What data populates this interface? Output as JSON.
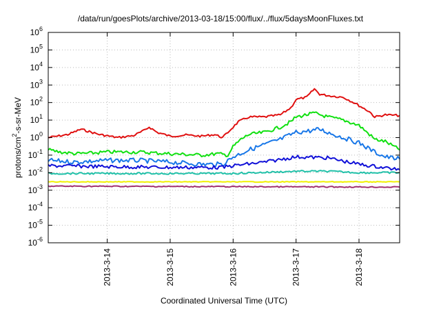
{
  "chart_data": {
    "type": "line",
    "title": "/data/run/goesPlots/archive/2013-03-18/15:00/flux/../flux/5daysMoonFluxes.txt",
    "xlabel": "Coordinated Universal Time (UTC)",
    "ylabel": "protons/cm2-s-sr-MeV",
    "ylabel_parts": {
      "base": "protons/cm",
      "sup": "2",
      "rest": "-s-sr-MeV"
    },
    "x_scale": "time",
    "xlim": [
      "2013-03-13T01:30",
      "2013-03-18T15:30"
    ],
    "x_ticks": [
      "2013-3-14",
      "2013-3-15",
      "2013-3-16",
      "2013-3-17",
      "2013-3-18"
    ],
    "x_tick_values": [
      "2013-03-14T00:00",
      "2013-03-15T00:00",
      "2013-03-16T00:00",
      "2013-03-17T00:00",
      "2013-03-18T00:00"
    ],
    "y_scale": "log",
    "ylim": [
      1e-06,
      1000000.0
    ],
    "y_tick_labels": [
      {
        "base": "10",
        "exp": "-6"
      },
      {
        "base": "10",
        "exp": "-5"
      },
      {
        "base": "10",
        "exp": "-4"
      },
      {
        "base": "10",
        "exp": "-3"
      },
      {
        "base": "10",
        "exp": "-2"
      },
      {
        "base": "10",
        "exp": "-1"
      },
      {
        "base": "10",
        "exp": "0"
      },
      {
        "base": "10",
        "exp": "1"
      },
      {
        "base": "10",
        "exp": "2"
      },
      {
        "base": "10",
        "exp": "3"
      },
      {
        "base": "10",
        "exp": "4"
      },
      {
        "base": "10",
        "exp": "5"
      },
      {
        "base": "10",
        "exp": "6"
      }
    ],
    "grid": true,
    "series": [
      {
        "color": "#e01010",
        "noise": 0.06,
        "x": [
          "2013-03-13T01:30",
          "2013-03-13T09:00",
          "2013-03-13T14:00",
          "2013-03-13T21:00",
          "2013-03-14T04:00",
          "2013-03-14T10:00",
          "2013-03-14T14:00",
          "2013-03-14T16:00",
          "2013-03-14T19:00",
          "2013-03-15T00:00",
          "2013-03-15T06:00",
          "2013-03-15T12:00",
          "2013-03-15T17:00",
          "2013-03-15T20:00",
          "2013-03-16T00:00",
          "2013-03-16T02:00",
          "2013-03-16T06:00",
          "2013-03-16T12:00",
          "2013-03-16T18:00",
          "2013-03-16T22:00",
          "2013-03-17T00:00",
          "2013-03-17T04:00",
          "2013-03-17T07:00",
          "2013-03-17T09:00",
          "2013-03-17T12:00",
          "2013-03-17T18:00",
          "2013-03-17T22:00",
          "2013-03-18T04:00",
          "2013-03-18T06:00",
          "2013-03-18T10:00",
          "2013-03-18T15:30"
        ],
        "y": [
          1.0,
          1.5,
          3.0,
          1.5,
          1.0,
          1.3,
          2.5,
          4.0,
          2.0,
          1.2,
          1.4,
          1.2,
          1.5,
          1.0,
          4.0,
          8.0,
          15,
          15,
          20,
          50,
          150,
          200,
          600,
          300,
          250,
          200,
          100,
          30,
          15,
          20,
          18
        ]
      },
      {
        "color": "#10e010",
        "noise": 0.1,
        "x": [
          "2013-03-13T01:30",
          "2013-03-13T06:00",
          "2013-03-13T12:00",
          "2013-03-13T18:00",
          "2013-03-14T00:00",
          "2013-03-14T12:00",
          "2013-03-15T00:00",
          "2013-03-15T12:00",
          "2013-03-15T18:00",
          "2013-03-15T22:00",
          "2013-03-16T00:00",
          "2013-03-16T03:00",
          "2013-03-16T06:00",
          "2013-03-16T12:00",
          "2013-03-16T18:00",
          "2013-03-16T22:00",
          "2013-03-17T00:00",
          "2013-03-17T04:00",
          "2013-03-17T07:00",
          "2013-03-17T12:00",
          "2013-03-17T18:00",
          "2013-03-18T00:00",
          "2013-03-18T04:00",
          "2013-03-18T06:00",
          "2013-03-18T10:00",
          "2013-03-18T15:30"
        ],
        "y": [
          0.2,
          0.15,
          0.12,
          0.13,
          0.15,
          0.15,
          0.12,
          0.1,
          0.12,
          0.1,
          0.3,
          0.8,
          1.5,
          2.0,
          4.0,
          8.0,
          15,
          20,
          25,
          15,
          10,
          5.0,
          1.5,
          0.8,
          0.6,
          0.2
        ]
      },
      {
        "color": "#1877e8",
        "noise": 0.13,
        "x": [
          "2013-03-13T01:30",
          "2013-03-13T12:00",
          "2013-03-14T00:00",
          "2013-03-14T12:00",
          "2013-03-15T00:00",
          "2013-03-15T12:00",
          "2013-03-15T20:00",
          "2013-03-16T00:00",
          "2013-03-16T06:00",
          "2013-03-16T12:00",
          "2013-03-16T18:00",
          "2013-03-17T00:00",
          "2013-03-17T06:00",
          "2013-03-17T09:00",
          "2013-03-17T12:00",
          "2013-03-17T18:00",
          "2013-03-18T00:00",
          "2013-03-18T06:00",
          "2013-03-18T10:00",
          "2013-03-18T15:30"
        ],
        "y": [
          0.05,
          0.04,
          0.05,
          0.05,
          0.04,
          0.03,
          0.03,
          0.08,
          0.2,
          0.4,
          0.8,
          2.0,
          2.5,
          3.0,
          2.0,
          1.0,
          0.5,
          0.15,
          0.08,
          0.06
        ]
      },
      {
        "color": "#1010d8",
        "noise": 0.1,
        "x": [
          "2013-03-13T01:30",
          "2013-03-14T00:00",
          "2013-03-15T00:00",
          "2013-03-15T20:00",
          "2013-03-16T00:00",
          "2013-03-16T12:00",
          "2013-03-17T00:00",
          "2013-03-17T12:00",
          "2013-03-18T00:00",
          "2013-03-18T15:30"
        ],
        "y": [
          0.025,
          0.022,
          0.02,
          0.02,
          0.025,
          0.04,
          0.08,
          0.07,
          0.03,
          0.015
        ]
      },
      {
        "color": "#20c0a8",
        "noise": 0.05,
        "x": [
          "2013-03-13T01:30",
          "2013-03-14T00:00",
          "2013-03-15T00:00",
          "2013-03-16T00:00",
          "2013-03-17T00:00",
          "2013-03-17T12:00",
          "2013-03-18T00:00",
          "2013-03-18T15:30"
        ],
        "y": [
          0.009,
          0.009,
          0.009,
          0.009,
          0.012,
          0.012,
          0.01,
          0.01
        ]
      },
      {
        "color": "#f0f000",
        "noise": 0.02,
        "x": [
          "2013-03-13T01:30",
          "2013-03-18T15:30"
        ],
        "y": [
          0.003,
          0.003
        ]
      },
      {
        "color": "#a03070",
        "noise": 0.03,
        "x": [
          "2013-03-13T01:30",
          "2013-03-18T15:30"
        ],
        "y": [
          0.0017,
          0.0015
        ]
      }
    ]
  }
}
